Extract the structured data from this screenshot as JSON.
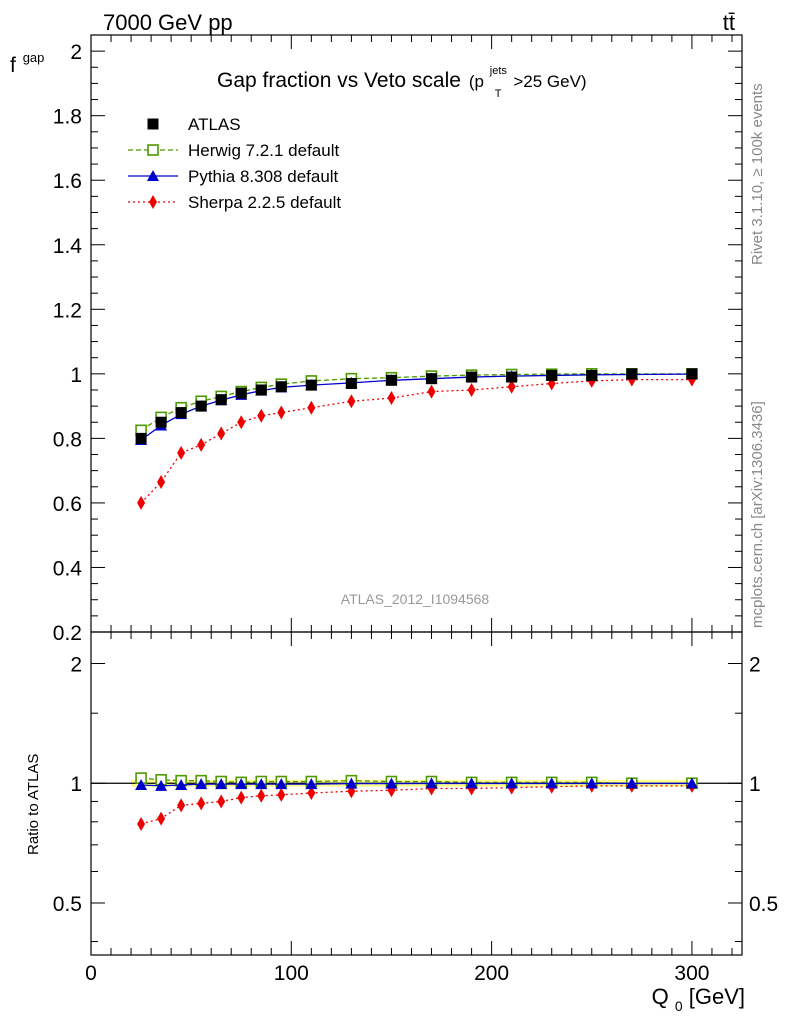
{
  "header": {
    "left": "7000 GeV pp",
    "right": "tt̄"
  },
  "side_texts": {
    "rivet": "Rivet 3.1.10, ≥ 100k events",
    "mcplots": "mcplots.cern.ch [arXiv:1306.3436]"
  },
  "chart_data": {
    "type": "line",
    "title": "Gap fraction vs Veto scale",
    "title_suffix": {
      "prefix": "(p",
      "sup": "jets",
      "sub": "T",
      "after": ">25 GeV)"
    },
    "watermark": "ATLAS_2012_I1094568",
    "xlabel": {
      "main": "Q",
      "sub": "0",
      "unit": " [GeV]"
    },
    "ylabel": {
      "main": "f",
      "sub": "gap"
    },
    "ratio_ylabel": "Ratio to ATLAS",
    "xlim": [
      0,
      325
    ],
    "ylim": [
      0.2,
      2.05
    ],
    "ratio_ylim": [
      0.37,
      2.4
    ],
    "ratio_scale": "log",
    "x_ticks": [
      "0",
      "100",
      "200",
      "300"
    ],
    "y_ticks": [
      "0.2",
      "0.4",
      "0.6",
      "0.8",
      "1",
      "1.2",
      "1.4",
      "1.6",
      "1.8",
      "2"
    ],
    "ratio_ticks": [
      "0.5",
      "1",
      "2"
    ],
    "x": [
      25,
      35,
      45,
      55,
      65,
      75,
      85,
      95,
      110,
      130,
      150,
      170,
      190,
      210,
      230,
      250,
      270,
      300
    ],
    "legend_position": "top-left",
    "series": [
      {
        "name": "ATLAS",
        "color": "#000000",
        "marker": "square-filled",
        "values": [
          0.8,
          0.85,
          0.88,
          0.9,
          0.92,
          0.94,
          0.95,
          0.96,
          0.965,
          0.97,
          0.98,
          0.985,
          0.99,
          0.99,
          0.995,
          0.995,
          1.0,
          1.0
        ],
        "ratio": [
          1,
          1,
          1,
          1,
          1,
          1,
          1,
          1,
          1,
          1,
          1,
          1,
          1,
          1,
          1,
          1,
          1,
          1
        ]
      },
      {
        "name": "Herwig 7.2.1 default",
        "color": "#4d9900",
        "marker": "square-open",
        "line": "dashed",
        "values": [
          0.825,
          0.865,
          0.895,
          0.915,
          0.93,
          0.945,
          0.958,
          0.968,
          0.978,
          0.985,
          0.988,
          0.993,
          0.996,
          0.998,
          0.999,
          1.0,
          1.0,
          1.0
        ],
        "ratio": [
          1.03,
          1.02,
          1.015,
          1.015,
          1.01,
          1.005,
          1.01,
          1.01,
          1.01,
          1.015,
          1.01,
          1.01,
          1.005,
          1.005,
          1.005,
          1.005,
          1.0,
          1.0
        ]
      },
      {
        "name": "Pythia 8.308 default",
        "color": "#0000cc",
        "marker": "triangle",
        "line": "solid",
        "values": [
          0.795,
          0.84,
          0.875,
          0.9,
          0.918,
          0.935,
          0.948,
          0.958,
          0.965,
          0.972,
          0.98,
          0.985,
          0.99,
          0.993,
          0.995,
          0.997,
          0.998,
          0.999
        ],
        "ratio": [
          0.99,
          0.985,
          0.99,
          0.995,
          0.995,
          0.995,
          0.995,
          0.995,
          0.995,
          0.998,
          0.998,
          0.999,
          0.999,
          0.999,
          0.999,
          0.999,
          0.999,
          0.999
        ]
      },
      {
        "name": "Sherpa 2.2.5 default",
        "color": "#ee0000",
        "marker": "diamond",
        "line": "dotted",
        "values": [
          0.6,
          0.665,
          0.755,
          0.78,
          0.815,
          0.85,
          0.87,
          0.88,
          0.895,
          0.915,
          0.925,
          0.945,
          0.95,
          0.96,
          0.97,
          0.978,
          0.982,
          0.982
        ],
        "ratio": [
          0.79,
          0.815,
          0.88,
          0.89,
          0.9,
          0.92,
          0.93,
          0.935,
          0.945,
          0.955,
          0.96,
          0.97,
          0.97,
          0.975,
          0.98,
          0.985,
          0.985,
          0.985
        ]
      }
    ]
  }
}
